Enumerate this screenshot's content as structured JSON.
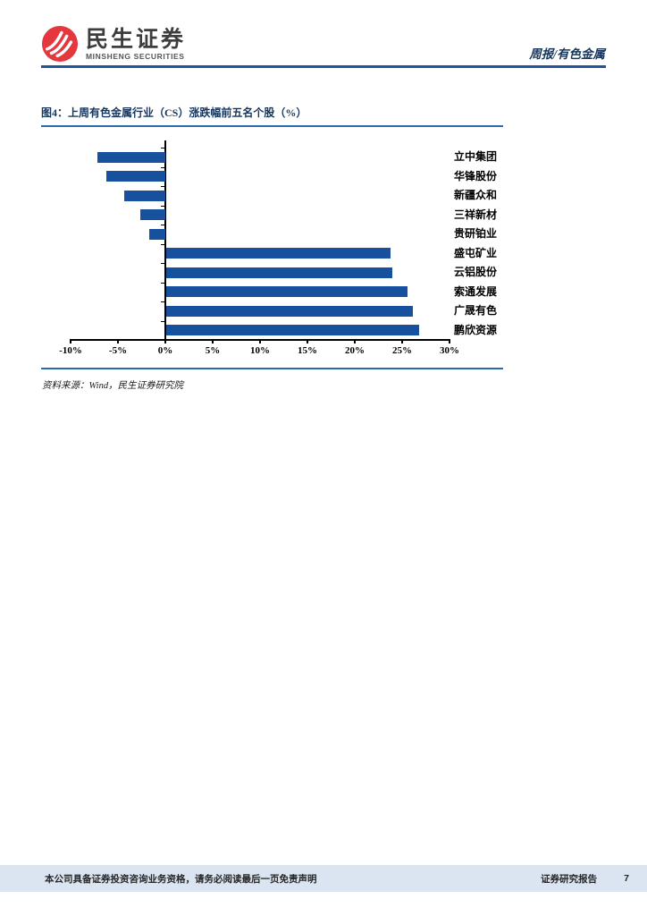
{
  "header": {
    "logo_cn": "民生证券",
    "logo_en": "MINSHENG SECURITIES",
    "report_tag": "周报/有色金属"
  },
  "figure": {
    "title": "图4：上周有色金属行业（CS）涨跌幅前五名个股（%）",
    "source": "资料来源：Wind，民生证券研究院"
  },
  "chart_data": {
    "type": "bar",
    "orientation": "horizontal",
    "title": "上周有色金属行业（CS）涨跌幅前五名个股（%）",
    "categories": [
      "立中集团",
      "华锋股份",
      "新疆众和",
      "三祥新材",
      "贵研铂业",
      "盛屯矿业",
      "云铝股份",
      "索通发展",
      "广晟有色",
      "鹏欣资源"
    ],
    "values": [
      -7.2,
      -6.2,
      -4.3,
      -2.6,
      -1.7,
      23.7,
      23.9,
      25.5,
      26.0,
      26.7
    ],
    "xlim": [
      -10,
      30
    ],
    "x_ticks": [
      "-10%",
      "-5%",
      "0%",
      "5%",
      "10%",
      "15%",
      "20%",
      "25%",
      "30%"
    ],
    "bar_color": "#17509c",
    "grid": false,
    "legend": "none"
  },
  "footer": {
    "disclaimer": "本公司具备证券投资咨询业务资格，请务必阅读最后一页免责声明",
    "report_type": "证券研究报告",
    "page_number": "7"
  },
  "colors": {
    "bar_blue": "#17509c",
    "navy_text": "#17365d",
    "rule_blue": "#2a6aad",
    "header_rule_blue": "#1f55a0",
    "footer_bg": "#dbe5f1",
    "logo_red": "#e5373e"
  }
}
